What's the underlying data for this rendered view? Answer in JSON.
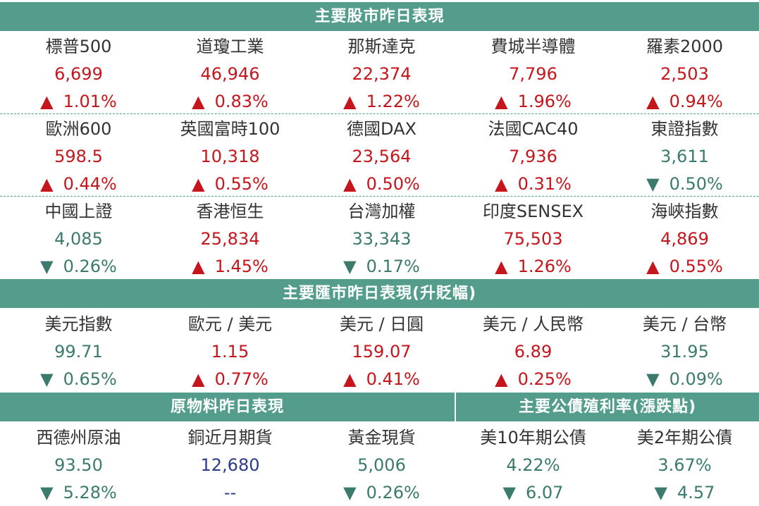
{
  "colors": {
    "banner": "#549d8c",
    "up": "#c4161c",
    "down": "#3b7a6c",
    "flat": "#2e3a8c",
    "label": "#333333"
  },
  "icons": {
    "up": "triangle-up-icon",
    "down": "triangle-down-icon"
  },
  "stocks": {
    "title": "主要股市昨日表現",
    "rows": [
      [
        {
          "name": "標普500",
          "value": "6,699",
          "dir": "up",
          "arrow": "▲",
          "change": "1.01%"
        },
        {
          "name": "道瓊工業",
          "value": "46,946",
          "dir": "up",
          "arrow": "▲",
          "change": "0.83%"
        },
        {
          "name": "那斯達克",
          "value": "22,374",
          "dir": "up",
          "arrow": "▲",
          "change": "1.22%"
        },
        {
          "name": "費城半導體",
          "value": "7,796",
          "dir": "up",
          "arrow": "▲",
          "change": "1.96%"
        },
        {
          "name": "羅素2000",
          "value": "2,503",
          "dir": "up",
          "arrow": "▲",
          "change": "0.94%"
        }
      ],
      [
        {
          "name": "歐洲600",
          "value": "598.5",
          "dir": "up",
          "arrow": "▲",
          "change": "0.44%"
        },
        {
          "name": "英國富時100",
          "value": "10,318",
          "dir": "up",
          "arrow": "▲",
          "change": "0.55%"
        },
        {
          "name": "德國DAX",
          "value": "23,564",
          "dir": "up",
          "arrow": "▲",
          "change": "0.50%"
        },
        {
          "name": "法國CAC40",
          "value": "7,936",
          "dir": "up",
          "arrow": "▲",
          "change": "0.31%"
        },
        {
          "name": "東證指數",
          "value": "3,611",
          "dir": "down",
          "arrow": "▼",
          "change": "0.50%"
        }
      ],
      [
        {
          "name": "中國上證",
          "value": "4,085",
          "dir": "down",
          "arrow": "▼",
          "change": "0.26%"
        },
        {
          "name": "香港恒生",
          "value": "25,834",
          "dir": "up",
          "arrow": "▲",
          "change": "1.45%"
        },
        {
          "name": "台灣加權",
          "value": "33,343",
          "dir": "down",
          "arrow": "▼",
          "change": "0.17%"
        },
        {
          "name": "印度SENSEX",
          "value": "75,503",
          "dir": "up",
          "arrow": "▲",
          "change": "1.26%"
        },
        {
          "name": "海峽指數",
          "value": "4,869",
          "dir": "up",
          "arrow": "▲",
          "change": "0.55%"
        }
      ]
    ]
  },
  "fx": {
    "title": "主要匯市昨日表現(升貶幅)",
    "items": [
      {
        "name": "美元指數",
        "value": "99.71",
        "dir": "down",
        "arrow": "▼",
        "change": "0.65%"
      },
      {
        "name": "歐元 / 美元",
        "value": "1.15",
        "dir": "up",
        "arrow": "▲",
        "change": "0.77%"
      },
      {
        "name": "美元 / 日圓",
        "value": "159.07",
        "dir": "up",
        "arrow": "▲",
        "change": "0.41%"
      },
      {
        "name": "美元 / 人民幣",
        "value": "6.89",
        "dir": "up",
        "arrow": "▲",
        "change": "0.25%"
      },
      {
        "name": "美元 / 台幣",
        "value": "31.95",
        "dir": "down",
        "arrow": "▼",
        "change": "0.09%"
      }
    ]
  },
  "commodities": {
    "title": "原物料昨日表現",
    "items": [
      {
        "name": "西德州原油",
        "value": "93.50",
        "dir": "down",
        "arrow": "▼",
        "change": "5.28%"
      },
      {
        "name": "銅近月期貨",
        "value": "12,680",
        "dir": "flat",
        "arrow": "",
        "change": "--"
      },
      {
        "name": "黃金現貨",
        "value": "5,006",
        "dir": "down",
        "arrow": "▼",
        "change": "0.26%"
      }
    ]
  },
  "bonds": {
    "title": "主要公債殖利率(漲跌點)",
    "items": [
      {
        "name": "美10年期公債",
        "value": "4.22%",
        "dir": "down",
        "arrow": "▼",
        "change": "6.07"
      },
      {
        "name": "美2年期公債",
        "value": "3.67%",
        "dir": "down",
        "arrow": "▼",
        "change": "4.57"
      }
    ]
  }
}
